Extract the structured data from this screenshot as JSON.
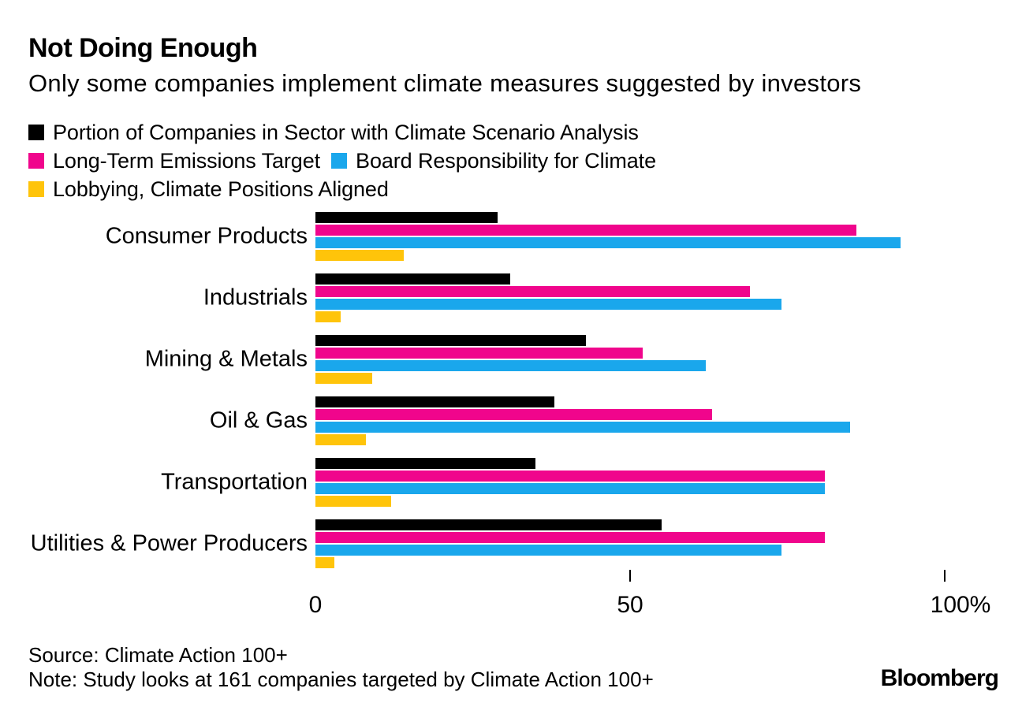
{
  "header": {
    "title": "Not Doing Enough",
    "subtitle": "Only some companies implement climate measures suggested by investors"
  },
  "legend": [
    {
      "label": "Portion of Companies in Sector with Climate Scenario Analysis",
      "color": "#000000"
    },
    {
      "label": "Long-Term Emissions Target",
      "color": "#F0058C"
    },
    {
      "label": "Board Responsibility for Climate",
      "color": "#1AA7EC"
    },
    {
      "label": "Lobbying, Climate Positions Aligned",
      "color": "#FFC40A"
    }
  ],
  "chart_data": {
    "type": "bar",
    "orientation": "horizontal",
    "title": "Not Doing Enough",
    "subtitle": "Only some companies implement climate measures suggested by investors",
    "categories": [
      "Consumer Products",
      "Industrials",
      "Mining & Metals",
      "Oil & Gas",
      "Transportation",
      "Utilities & Power Producers"
    ],
    "series": [
      {
        "name": "Portion of Companies in Sector with Climate Scenario Analysis",
        "color": "#000000",
        "values": [
          29,
          31,
          43,
          38,
          35,
          55
        ]
      },
      {
        "name": "Long-Term Emissions Target",
        "color": "#F0058C",
        "values": [
          86,
          69,
          52,
          63,
          81,
          81
        ]
      },
      {
        "name": "Board Responsibility for Climate",
        "color": "#1AA7EC",
        "values": [
          93,
          74,
          62,
          85,
          81,
          74
        ]
      },
      {
        "name": "Lobbying, Climate Positions Aligned",
        "color": "#FFC40A",
        "values": [
          14,
          4,
          9,
          8,
          12,
          3
        ]
      }
    ],
    "xlim": [
      0,
      100
    ],
    "unit": "%",
    "x_ticks": [
      {
        "value": 0,
        "label": "0",
        "show_mark": false
      },
      {
        "value": 50,
        "label": "50",
        "show_mark": true
      },
      {
        "value": 100,
        "label": "100%",
        "show_mark": true
      }
    ],
    "grid": false,
    "legend_position": "top"
  },
  "footer": {
    "source": "Source: Climate Action 100+",
    "note": "Note: Study looks at 161 companies targeted by Climate Action 100+",
    "brand": "Bloomberg"
  }
}
